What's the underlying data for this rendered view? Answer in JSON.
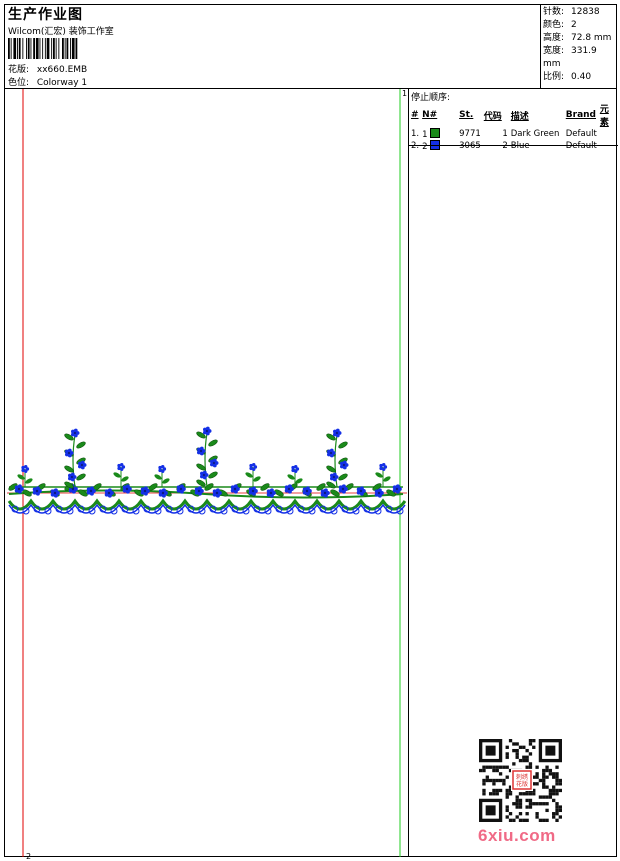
{
  "header": {
    "title": "生产作业图",
    "subtitle": "Wilcom(汇宏) 装饰工作室",
    "design_label": "花版:",
    "design_value": "xx660.EMB",
    "colorway_label": "色位:",
    "colorway_value": "Colorway 1"
  },
  "info": [
    {
      "label": "针数:",
      "value": "12838"
    },
    {
      "label": "颜色:",
      "value": "2"
    },
    {
      "label": "高度:",
      "value": "72.8 mm"
    },
    {
      "label": "宽度:",
      "value": "331.9 mm"
    },
    {
      "label": "比例:",
      "value": "0.40"
    }
  ],
  "guides": {
    "left_marker": "2",
    "right_marker": "1"
  },
  "stop_sequence": {
    "title": "停止顺序:",
    "columns": [
      "#",
      "N#",
      "St.",
      "代码",
      "描述",
      "Brand",
      "元素"
    ],
    "rows": [
      {
        "num": "1.",
        "needle": "1",
        "color": "#1a8a1a",
        "stitches": "9771",
        "code": "1",
        "desc": "Dark Green",
        "brand": "Default",
        "element": ""
      },
      {
        "num": "2.",
        "needle": "2",
        "color": "#1430e6",
        "stitches": "3065",
        "code": "2",
        "desc": "Blue",
        "brand": "Default",
        "element": ""
      }
    ]
  },
  "watermark": {
    "site": "6xiu.com",
    "seal": "刺绣花版"
  },
  "colors": {
    "green": "#1a8a1a",
    "blue": "#1430e6",
    "red_guide": "#e00000",
    "green_guide": "#22cc22"
  }
}
